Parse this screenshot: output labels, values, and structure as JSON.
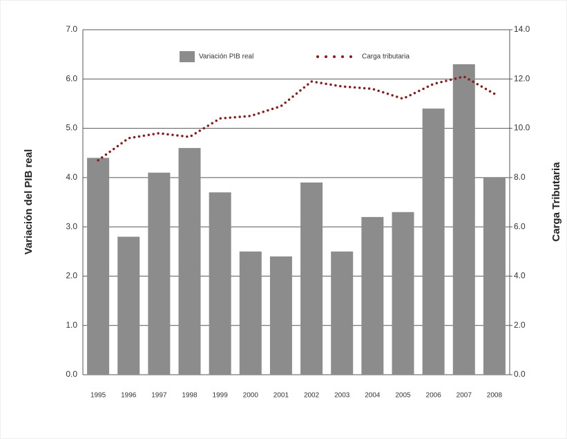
{
  "chart_data": {
    "type": "bar_line",
    "categories": [
      "1995",
      "1996",
      "1997",
      "1998",
      "1999",
      "2000",
      "2001",
      "2002",
      "2003",
      "2004",
      "2005",
      "2006",
      "2007",
      "2008"
    ],
    "series": [
      {
        "name": "Variación PIB real",
        "type": "bar",
        "color": "#8c8c8c",
        "values": [
          4.4,
          2.8,
          4.1,
          4.6,
          3.7,
          2.5,
          2.4,
          3.9,
          2.5,
          3.2,
          3.3,
          5.4,
          6.3,
          4.0
        ]
      },
      {
        "name": "Carga tributaria",
        "type": "line",
        "axis": "y2",
        "color": "#8b1a1a",
        "values": [
          8.7,
          9.6,
          9.8,
          9.65,
          10.4,
          10.5,
          10.9,
          11.9,
          11.7,
          11.6,
          11.2,
          11.8,
          12.1,
          11.4
        ]
      }
    ],
    "ylabel": "Variación del PIB real",
    "y2label": "Carga Tributaria",
    "ylim": [
      0,
      7
    ],
    "yticks": [
      {
        "value": 0,
        "label": "0.0"
      },
      {
        "value": 1,
        "label": "1.0"
      },
      {
        "value": 2,
        "label": "2.0"
      },
      {
        "value": 3,
        "label": "3.0"
      },
      {
        "value": 4,
        "label": "4.0"
      },
      {
        "value": 5,
        "label": "5.0"
      },
      {
        "value": 6,
        "label": "6.0"
      },
      {
        "value": 7,
        "label": "7.0"
      }
    ],
    "y2lim": [
      0,
      14
    ],
    "y2ticks": [
      {
        "value": 0,
        "label": "0.0"
      },
      {
        "value": 2,
        "label": "2.0"
      },
      {
        "value": 4,
        "label": "4.0"
      },
      {
        "value": 6,
        "label": "6.0"
      },
      {
        "value": 8,
        "label": "8.0"
      },
      {
        "value": 10,
        "label": "10.0"
      },
      {
        "value": 12,
        "label": "12.0"
      },
      {
        "value": 14,
        "label": "14.0"
      }
    ],
    "grid": true
  }
}
